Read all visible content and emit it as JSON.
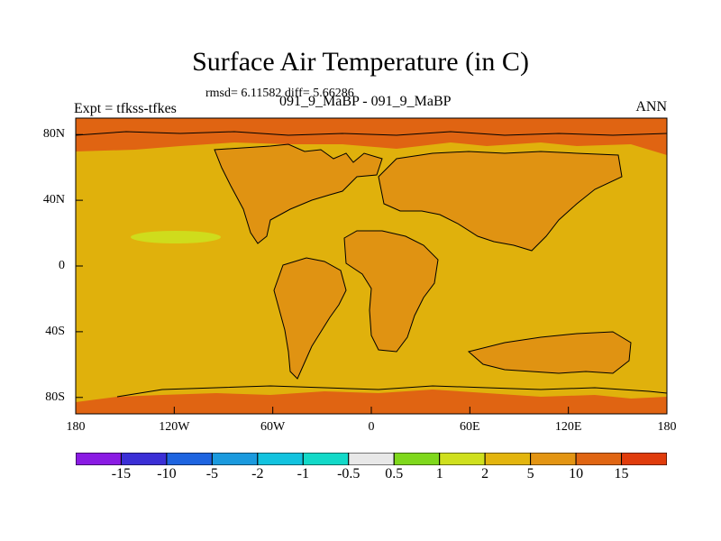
{
  "title": "Surface Air Temperature (in C)",
  "stats": "rmsd= 6.11582 diff= 5.66286",
  "expt_label": "Expt = tfkss-tfkes",
  "case_label": "091_9_MaBP - 091_9_MaBP",
  "season": "ANN",
  "axes": {
    "y_ticks": [
      {
        "label": "80N",
        "lat": 80
      },
      {
        "label": "40N",
        "lat": 40
      },
      {
        "label": "0",
        "lat": 0
      },
      {
        "label": "40S",
        "lat": -40
      },
      {
        "label": "80S",
        "lat": -80
      }
    ],
    "x_ticks": [
      {
        "label": "180",
        "lon": -180
      },
      {
        "label": "120W",
        "lon": -120
      },
      {
        "label": "60W",
        "lon": -60
      },
      {
        "label": "0",
        "lon": 0
      },
      {
        "label": "60E",
        "lon": 60
      },
      {
        "label": "120E",
        "lon": 120
      },
      {
        "label": "180",
        "lon": 180
      }
    ]
  },
  "colorbar": {
    "colors": [
      "#8a1be3",
      "#3b2fd6",
      "#1e64e0",
      "#1b9ade",
      "#12c3df",
      "#12d9c8",
      "#e8e8e8",
      "#7fd81c",
      "#cfe01e",
      "#e3b50e",
      "#e39513",
      "#e06512",
      "#e03c0c"
    ],
    "labels": [
      "-15",
      "-10",
      "-5",
      "-2",
      "-1",
      "-0.5",
      "0.5",
      "1",
      "2",
      "5",
      "10",
      "15"
    ]
  },
  "field_colors": {
    "ocean_main": "#e0b10c",
    "land": "#e09312",
    "polar": "#e06412",
    "light_spot": "#cfdc1c",
    "coast_line": "#000000"
  }
}
